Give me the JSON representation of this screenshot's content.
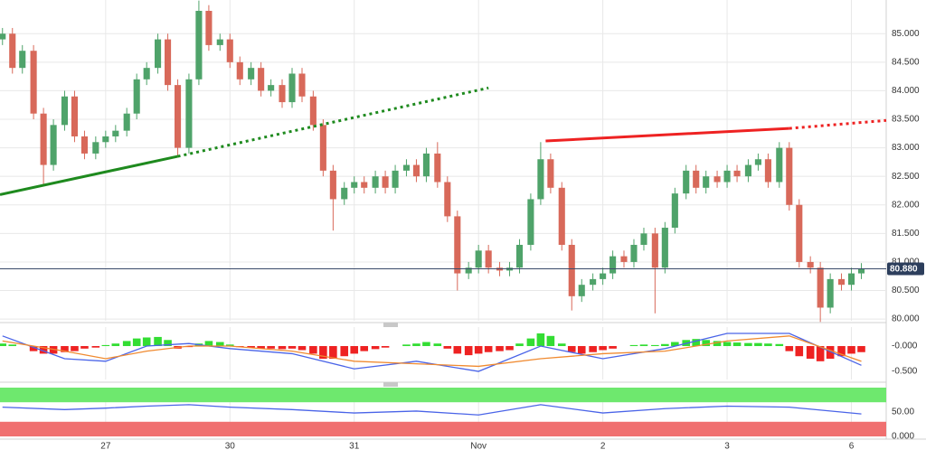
{
  "chart_data": [
    {
      "type": "candlestick",
      "xlim": [
        -0.85,
        6.28
      ],
      "xticks": [
        {
          "value": 0,
          "label": "27"
        },
        {
          "value": 1,
          "label": "30"
        },
        {
          "value": 2,
          "label": "31"
        },
        {
          "value": 3,
          "label": "Nov"
        },
        {
          "value": 4,
          "label": "2"
        },
        {
          "value": 5,
          "label": "3"
        },
        {
          "value": 6,
          "label": "6"
        }
      ],
      "ylim": [
        79.97,
        85.59
      ],
      "yticks": [
        {
          "value": 80,
          "label": "80.000"
        },
        {
          "value": 80.5,
          "label": "80.500"
        },
        {
          "value": 81,
          "label": "81.000"
        },
        {
          "value": 81.5,
          "label": "81.500"
        },
        {
          "value": 82,
          "label": "82.000"
        },
        {
          "value": 82.5,
          "label": "82.500"
        },
        {
          "value": 83,
          "label": "83.000"
        },
        {
          "value": 83.5,
          "label": "83.500"
        },
        {
          "value": 84,
          "label": "84.000"
        },
        {
          "value": 84.5,
          "label": "84.500"
        },
        {
          "value": 85,
          "label": "85.000"
        }
      ],
      "grid": true,
      "up_color": "#4fa36a",
      "down_color": "#d8695a",
      "x": [
        -0.83,
        -0.75,
        -0.67,
        -0.58,
        -0.5,
        -0.42,
        -0.33,
        -0.25,
        -0.17,
        -0.08,
        0,
        0.08,
        0.17,
        0.25,
        0.33,
        0.42,
        0.5,
        0.58,
        0.67,
        0.75,
        0.83,
        0.92,
        1,
        1.08,
        1.17,
        1.25,
        1.33,
        1.42,
        1.5,
        1.58,
        1.67,
        1.75,
        1.83,
        1.92,
        2,
        2.08,
        2.17,
        2.25,
        2.33,
        2.42,
        2.5,
        2.58,
        2.67,
        2.75,
        2.83,
        2.92,
        3,
        3.08,
        3.17,
        3.25,
        3.33,
        3.42,
        3.5,
        3.58,
        3.67,
        3.75,
        3.83,
        3.92,
        4,
        4.08,
        4.17,
        4.25,
        4.33,
        4.42,
        4.5,
        4.58,
        4.67,
        4.75,
        4.83,
        4.92,
        5,
        5.08,
        5.17,
        5.25,
        5.33,
        5.42,
        5.5,
        5.58,
        5.67,
        5.75,
        5.83,
        5.92,
        6,
        6.08
      ],
      "open": [
        84.9,
        85.0,
        84.4,
        84.7,
        83.6,
        82.7,
        83.4,
        83.9,
        83.2,
        82.9,
        83.1,
        83.2,
        83.3,
        83.6,
        84.2,
        84.4,
        84.9,
        84.1,
        83.0,
        84.2,
        85.4,
        84.8,
        84.9,
        84.5,
        84.2,
        84.4,
        84.0,
        84.1,
        83.8,
        84.3,
        83.9,
        83.4,
        82.6,
        82.1,
        82.3,
        82.4,
        82.3,
        82.5,
        82.3,
        82.6,
        82.7,
        82.5,
        82.9,
        82.4,
        81.8,
        80.8,
        80.9,
        81.2,
        80.9,
        80.85,
        80.9,
        81.3,
        82.1,
        82.8,
        82.3,
        81.3,
        80.4,
        80.6,
        80.7,
        80.8,
        81.1,
        81.0,
        81.3,
        81.5,
        80.9,
        81.6,
        82.2,
        82.6,
        82.3,
        82.5,
        82.4,
        82.6,
        82.5,
        82.7,
        82.8,
        82.4,
        83.0,
        82.0,
        81.0,
        80.9,
        80.2,
        80.7,
        80.6,
        80.8
      ],
      "high": [
        85.1,
        85.1,
        84.8,
        84.8,
        83.7,
        83.5,
        84.0,
        84.0,
        83.3,
        83.2,
        83.3,
        83.4,
        83.7,
        84.3,
        84.5,
        85.0,
        85.0,
        84.2,
        84.3,
        85.58,
        85.5,
        85.0,
        85.0,
        84.6,
        84.5,
        84.5,
        84.2,
        84.2,
        84.4,
        84.4,
        84.0,
        83.5,
        82.7,
        82.4,
        82.5,
        82.5,
        82.6,
        82.6,
        82.7,
        82.8,
        82.8,
        83.0,
        83.1,
        82.5,
        81.9,
        81.0,
        81.3,
        81.3,
        81.0,
        81.0,
        81.4,
        82.2,
        83.1,
        82.9,
        82.4,
        81.4,
        80.7,
        80.8,
        80.9,
        81.2,
        81.2,
        81.4,
        81.6,
        81.6,
        81.7,
        82.3,
        82.7,
        82.7,
        82.6,
        82.6,
        82.7,
        82.7,
        82.8,
        82.9,
        82.9,
        83.1,
        83.1,
        82.1,
        81.1,
        81.0,
        80.8,
        80.8,
        80.9,
        80.98
      ],
      "low": [
        84.8,
        84.3,
        84.3,
        83.5,
        82.35,
        82.6,
        83.3,
        83.1,
        82.8,
        82.8,
        83.0,
        83.1,
        83.2,
        83.5,
        84.1,
        84.3,
        84.0,
        82.85,
        82.9,
        84.1,
        84.7,
        84.7,
        84.4,
        84.1,
        84.1,
        83.9,
        83.9,
        83.7,
        83.7,
        83.8,
        83.3,
        82.5,
        81.55,
        82.0,
        82.2,
        82.2,
        82.2,
        82.2,
        82.2,
        82.5,
        82.4,
        82.4,
        82.3,
        81.7,
        80.5,
        80.7,
        80.8,
        80.8,
        80.75,
        80.75,
        80.8,
        81.2,
        82.0,
        82.2,
        81.2,
        80.15,
        80.3,
        80.5,
        80.6,
        80.7,
        80.9,
        80.9,
        81.2,
        80.1,
        80.8,
        81.5,
        82.1,
        82.2,
        82.2,
        82.3,
        82.3,
        82.4,
        82.4,
        82.6,
        82.3,
        82.3,
        81.9,
        80.9,
        80.8,
        79.95,
        80.1,
        80.5,
        80.5,
        80.7
      ],
      "close": [
        85.0,
        84.4,
        84.7,
        83.6,
        82.7,
        83.4,
        83.9,
        83.2,
        82.9,
        83.1,
        83.2,
        83.3,
        83.6,
        84.2,
        84.4,
        84.9,
        84.1,
        83.0,
        84.2,
        85.4,
        84.8,
        84.9,
        84.5,
        84.2,
        84.4,
        84.0,
        84.1,
        83.8,
        84.3,
        83.9,
        83.4,
        82.6,
        82.1,
        82.3,
        82.4,
        82.3,
        82.5,
        82.3,
        82.6,
        82.7,
        82.5,
        82.9,
        82.4,
        81.8,
        80.8,
        80.9,
        81.2,
        80.9,
        80.85,
        80.9,
        81.3,
        82.1,
        82.8,
        82.3,
        81.3,
        80.4,
        80.6,
        80.7,
        80.8,
        81.1,
        81.0,
        81.3,
        81.5,
        80.9,
        81.6,
        82.2,
        82.6,
        82.3,
        82.5,
        82.4,
        82.6,
        82.5,
        82.7,
        82.8,
        82.4,
        83.0,
        82.0,
        81.0,
        80.9,
        80.2,
        80.7,
        80.6,
        80.8,
        80.88
      ],
      "trendlines": [
        {
          "color": "#1e8a1e",
          "style": "solid",
          "points": [
            [
              -0.85,
              82.18
            ],
            [
              0.58,
              82.85
            ]
          ]
        },
        {
          "color": "#1e8a1e",
          "style": "dotted",
          "points": [
            [
              0.58,
              82.85
            ],
            [
              3.08,
              84.05
            ]
          ]
        },
        {
          "color": "#ee2222",
          "style": "solid",
          "points": [
            [
              3.54,
              83.12
            ],
            [
              5.5,
              83.34
            ]
          ]
        },
        {
          "color": "#ee2222",
          "style": "dotted",
          "points": [
            [
              5.5,
              83.34
            ],
            [
              6.28,
              83.48
            ]
          ]
        }
      ],
      "last_price": {
        "value": 80.88,
        "label": "80.880"
      }
    },
    {
      "type": "macd",
      "xlim": [
        -0.85,
        6.28
      ],
      "ylim": [
        -0.66,
        0.375
      ],
      "yticks": [
        {
          "value": 0,
          "label": "-0.000"
        },
        {
          "value": -0.5,
          "label": "-0.500"
        }
      ],
      "positive_color": "#33dd33",
      "negative_color": "#ee2222",
      "histogram": [
        0.05,
        0.03,
        0,
        -0.1,
        -0.15,
        -0.15,
        -0.12,
        -0.1,
        -0.05,
        -0.03,
        0.02,
        0.05,
        0.1,
        0.15,
        0.17,
        0.18,
        0.12,
        -0.05,
        -0.02,
        0.05,
        0.1,
        0.08,
        0.03,
        -0.02,
        -0.03,
        -0.05,
        -0.05,
        -0.06,
        -0.05,
        -0.08,
        -0.15,
        -0.25,
        -0.25,
        -0.2,
        -0.15,
        -0.1,
        -0.06,
        -0.03,
        0,
        0.03,
        0.05,
        0.08,
        0.05,
        -0.05,
        -0.15,
        -0.18,
        -0.15,
        -0.12,
        -0.1,
        -0.08,
        0.05,
        0.15,
        0.25,
        0.2,
        0.05,
        -0.12,
        -0.15,
        -0.12,
        -0.08,
        -0.05,
        0,
        0.02,
        0.03,
        0.02,
        0.04,
        0.08,
        0.12,
        0.14,
        0.12,
        0.1,
        0.08,
        0.07,
        0.06,
        0.06,
        0.05,
        0.04,
        -0.1,
        -0.2,
        -0.25,
        -0.3,
        -0.25,
        -0.2,
        -0.15,
        -0.12
      ],
      "x": [
        -0.83,
        -0.33,
        0,
        0.33,
        0.67,
        1,
        1.5,
        2,
        2.5,
        3,
        3.5,
        4,
        4.5,
        5,
        5.5,
        6.08
      ],
      "series": [
        {
          "color": "#4a64e8",
          "values": [
            0.2,
            -0.25,
            -0.3,
            0,
            0.05,
            -0.05,
            -0.15,
            -0.45,
            -0.3,
            -0.5,
            0,
            -0.25,
            -0.05,
            0.25,
            0.25,
            -0.38
          ]
        },
        {
          "color": "#f08a30",
          "values": [
            0.1,
            -0.1,
            -0.25,
            -0.1,
            0,
            0,
            -0.1,
            -0.3,
            -0.35,
            -0.4,
            -0.25,
            -0.15,
            -0.1,
            0.1,
            0.2,
            -0.3
          ]
        }
      ]
    },
    {
      "type": "rsi",
      "xlim": [
        -0.85,
        6.28
      ],
      "ylim": [
        0,
        100
      ],
      "yticks": [
        {
          "value": 0,
          "label": "0.000"
        },
        {
          "value": 50,
          "label": "50.00"
        }
      ],
      "bands": [
        {
          "range": [
            70,
            100
          ],
          "color": "#6ee86e"
        },
        {
          "range": [
            0,
            30
          ],
          "color": "#f07070"
        }
      ],
      "x": [
        -0.83,
        -0.33,
        0,
        0.33,
        0.67,
        1,
        1.5,
        2,
        2.5,
        3,
        3.5,
        4,
        4.5,
        5,
        5.5,
        6.08
      ],
      "series": [
        {
          "color": "#4a64e8",
          "values": [
            60,
            55,
            58,
            62,
            65,
            60,
            55,
            48,
            52,
            44,
            65,
            48,
            57,
            62,
            60,
            46
          ]
        }
      ]
    }
  ]
}
